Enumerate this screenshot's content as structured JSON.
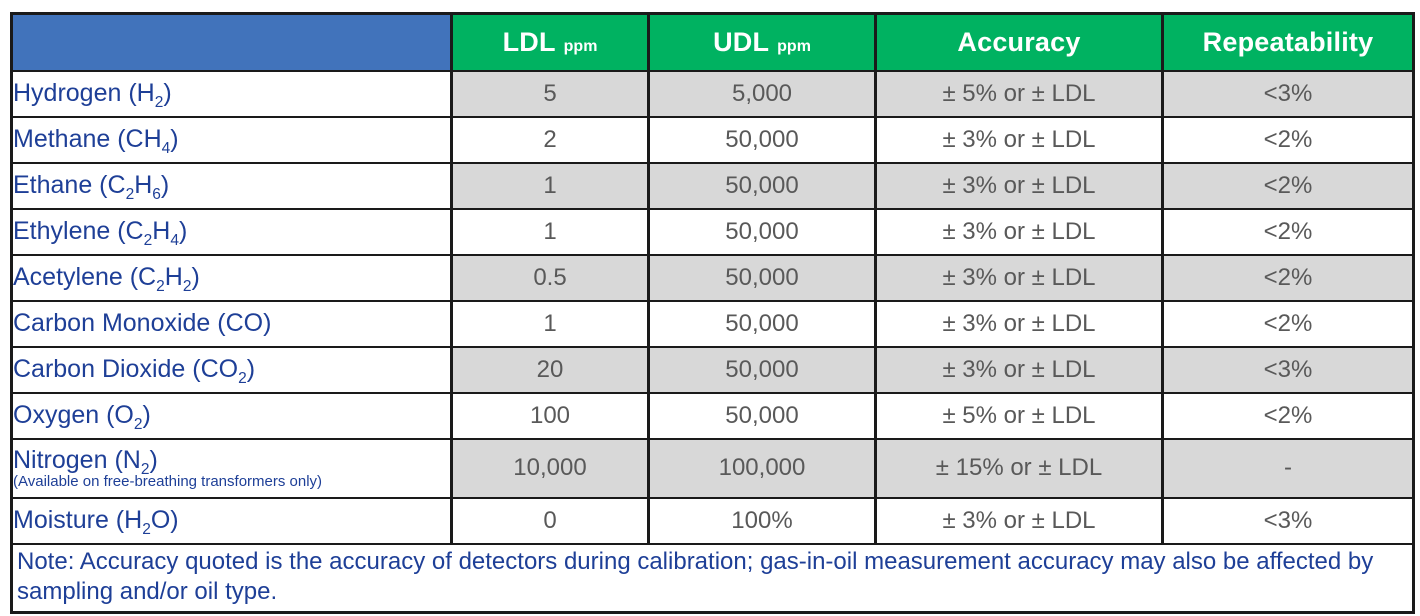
{
  "table": {
    "header": {
      "gas_blank": "",
      "ldl": {
        "main": "LDL",
        "unit": "ppm"
      },
      "udl": {
        "main": "UDL",
        "unit": "ppm"
      },
      "accuracy": "Accuracy",
      "repeatability": "Repeatability"
    },
    "rows": [
      {
        "gas": [
          {
            "t": "Hydrogen (H"
          },
          {
            "t": "2",
            "sub": true
          },
          {
            "t": ")"
          }
        ],
        "ldl": "5",
        "udl": "5,000",
        "accuracy": "± 5% or ± LDL",
        "repeatability": "<3%",
        "shaded": true
      },
      {
        "gas": [
          {
            "t": "Methane (CH"
          },
          {
            "t": "4",
            "sub": true
          },
          {
            "t": ")"
          }
        ],
        "ldl": "2",
        "udl": "50,000",
        "accuracy": "± 3% or ± LDL",
        "repeatability": "<2%",
        "shaded": false
      },
      {
        "gas": [
          {
            "t": "Ethane (C"
          },
          {
            "t": "2",
            "sub": true
          },
          {
            "t": "H"
          },
          {
            "t": "6",
            "sub": true
          },
          {
            "t": ")"
          }
        ],
        "ldl": "1",
        "udl": "50,000",
        "accuracy": "± 3% or ± LDL",
        "repeatability": "<2%",
        "shaded": true
      },
      {
        "gas": [
          {
            "t": "Ethylene (C"
          },
          {
            "t": "2",
            "sub": true
          },
          {
            "t": "H"
          },
          {
            "t": "4",
            "sub": true
          },
          {
            "t": ")"
          }
        ],
        "ldl": "1",
        "udl": "50,000",
        "accuracy": "± 3% or ± LDL",
        "repeatability": "<2%",
        "shaded": false
      },
      {
        "gas": [
          {
            "t": "Acetylene (C"
          },
          {
            "t": "2",
            "sub": true
          },
          {
            "t": "H"
          },
          {
            "t": "2",
            "sub": true
          },
          {
            "t": ")"
          }
        ],
        "ldl": "0.5",
        "udl": "50,000",
        "accuracy": "± 3% or ± LDL",
        "repeatability": "<2%",
        "shaded": true
      },
      {
        "gas": [
          {
            "t": "Carbon Monoxide (CO)"
          }
        ],
        "ldl": "1",
        "udl": "50,000",
        "accuracy": "± 3% or ± LDL",
        "repeatability": "<2%",
        "shaded": false
      },
      {
        "gas": [
          {
            "t": "Carbon Dioxide (CO"
          },
          {
            "t": "2",
            "sub": true
          },
          {
            "t": ")"
          }
        ],
        "ldl": "20",
        "udl": "50,000",
        "accuracy": "± 3% or ± LDL",
        "repeatability": "<3%",
        "shaded": true
      },
      {
        "gas": [
          {
            "t": "Oxygen (O"
          },
          {
            "t": "2",
            "sub": true
          },
          {
            "t": ")"
          }
        ],
        "ldl": "100",
        "udl": "50,000",
        "accuracy": "± 5% or ± LDL",
        "repeatability": "<2%",
        "shaded": false
      },
      {
        "gas": [
          {
            "t": "Nitrogen (N"
          },
          {
            "t": "2",
            "sub": true
          },
          {
            "t": ")"
          }
        ],
        "subnote": "(Available on free-breathing transformers only)",
        "ldl": "10,000",
        "udl": "100,000",
        "accuracy": "± 15% or ± LDL",
        "repeatability": "-",
        "shaded": true,
        "tall": true
      },
      {
        "gas": [
          {
            "t": "Moisture (H"
          },
          {
            "t": "2",
            "sub": true
          },
          {
            "t": "O)"
          }
        ],
        "ldl": "0",
        "udl": "100%",
        "accuracy": "± 3% or ± LDL",
        "repeatability": "<3%",
        "shaded": false
      }
    ],
    "footnote": "Note: Accuracy quoted is the accuracy of detectors during calibration; gas-in-oil measurement accuracy may also be affected by sampling and/or oil type."
  },
  "colors": {
    "header_blue": "#4173bb",
    "header_green": "#00b261",
    "shaded_row": "#d8d8d8",
    "gas_text_blue": "#1e3f97",
    "value_text_gray": "#595959",
    "border": "#1a1a1a"
  }
}
